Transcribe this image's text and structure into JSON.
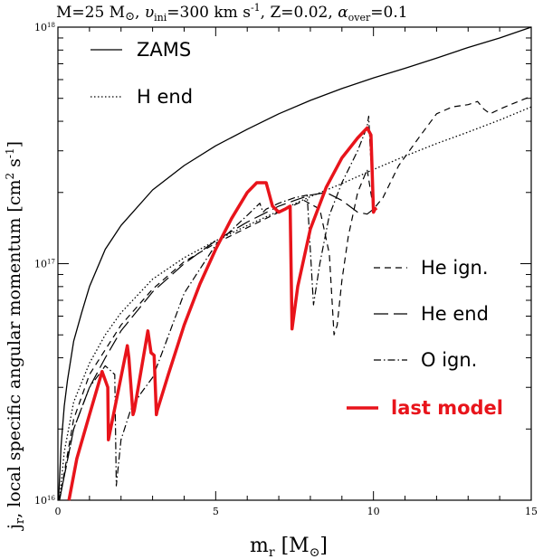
{
  "chart_data": {
    "type": "line",
    "title": "M=25 M⊙, υini=300 km s⁻¹, Z=0.02, αover=0.1",
    "title_parts": {
      "mass": "M=25 M",
      "sun": "⊙",
      "v": "υ",
      "v_sub": "ini",
      "v_val": "=300  km s",
      "v_exp": "-1",
      "z": ", Z=0.02, ",
      "alpha": "α",
      "alpha_sub": "over",
      "alpha_val": "=0.1"
    },
    "xlabel": "m",
    "xlabel_sub": "r",
    "xlabel_unit": "[M",
    "xlabel_unit_end": "]",
    "ylabel": "j",
    "ylabel_sub": "r",
    "ylabel_text": ", local specific angular momentum [cm",
    "ylabel_exp1": "2",
    "ylabel_mid": " s",
    "ylabel_exp2": "-1",
    "ylabel_end": "]",
    "xlim": [
      0,
      15
    ],
    "ylim": [
      1e+16,
      1e+18
    ],
    "yscale": "log",
    "x_ticks": [
      {
        "value": 0,
        "label": "0"
      },
      {
        "value": 5,
        "label": "5"
      },
      {
        "value": 10,
        "label": "10"
      },
      {
        "value": 15,
        "label": "15"
      }
    ],
    "y_ticks": [
      {
        "value": 1e+16,
        "label": "10",
        "exp": "16"
      },
      {
        "value": 1e+17,
        "label": "10",
        "exp": "17"
      },
      {
        "value": 1e+18,
        "label": "10",
        "exp": "18"
      }
    ],
    "legend": [
      {
        "name": "ZAMS",
        "style": "solid",
        "color": "#000000"
      },
      {
        "name": "H end",
        "style": "dotted",
        "color": "#000000"
      },
      {
        "name": "He ign.",
        "style": "dashed",
        "color": "#000000"
      },
      {
        "name": "He end",
        "style": "longdash",
        "color": "#000000"
      },
      {
        "name": "O ign.",
        "style": "dashdot",
        "color": "#000000"
      },
      {
        "name": "last model",
        "style": "thick-solid",
        "color": "#e8141b"
      }
    ],
    "series": [
      {
        "name": "ZAMS",
        "style": "solid",
        "x": [
          0.02,
          0.1,
          0.2,
          0.3,
          0.5,
          0.75,
          1.0,
          1.5,
          2.0,
          3.0,
          4.0,
          5.0,
          6.0,
          7.0,
          8.0,
          9.0,
          10.0,
          11.0,
          12.0,
          13.0,
          14.0,
          15.0
        ],
        "y": [
          1e+16,
          1.7e+16,
          2.5e+16,
          3.2e+16,
          4.7e+16,
          6.2e+16,
          8e+16,
          1.15e+17,
          1.45e+17,
          2.05e+17,
          2.6e+17,
          3.15e+17,
          3.7e+17,
          4.3e+17,
          4.9e+17,
          5.5e+17,
          6.1e+17,
          6.7e+17,
          7.4e+17,
          8.2e+17,
          9e+17,
          1e+18
        ]
      },
      {
        "name": "H end",
        "style": "dotted",
        "x": [
          0.05,
          0.2,
          0.5,
          1.0,
          1.5,
          2.0,
          3.0,
          4.0,
          5.0,
          6.0,
          7.0,
          8.0,
          9.0,
          10.0,
          11.0,
          12.0,
          13.0,
          14.0,
          15.0
        ],
        "y": [
          1e+16,
          1.6e+16,
          2.6e+16,
          3.8e+16,
          5e+16,
          6.2e+16,
          8.6e+16,
          1.06e+17,
          1.25e+17,
          1.45e+17,
          1.67e+17,
          1.92e+17,
          2.18e+17,
          2.5e+17,
          2.85e+17,
          3.22e+17,
          3.6e+17,
          4.05e+17,
          4.6e+17
        ]
      },
      {
        "name": "He ign.",
        "style": "dashed",
        "x": [
          0.05,
          0.5,
          1.0,
          2.0,
          3.0,
          4.0,
          5.0,
          6.0,
          7.0,
          7.8,
          8.3,
          8.6,
          8.75,
          8.85,
          9.0,
          9.2,
          9.5,
          9.8,
          10.0,
          10.3,
          10.8,
          11.5,
          12.0,
          12.5,
          13.0,
          13.3,
          13.5,
          13.7,
          14.0,
          14.5,
          15.0
        ],
        "y": [
          1e+16,
          2.2e+16,
          3.4e+16,
          5.5e+16,
          7.8e+16,
          1.02e+17,
          1.22e+17,
          1.42e+17,
          1.65e+17,
          1.85e+17,
          1.7e+17,
          1.1e+17,
          5e+16,
          5.5e+16,
          8.5e+16,
          1.3e+17,
          2e+17,
          2.5e+17,
          1.7e+17,
          1.9e+17,
          2.6e+17,
          3.5e+17,
          4.3e+17,
          4.6e+17,
          4.7e+17,
          4.85e+17,
          4.5e+17,
          4.3e+17,
          4.5e+17,
          4.8e+17,
          5.1e+17
        ]
      },
      {
        "name": "He end",
        "style": "longdash",
        "x": [
          0.05,
          0.5,
          1.0,
          1.5,
          2.0,
          3.0,
          4.0,
          5.0,
          6.0,
          7.0,
          7.5,
          8.0,
          8.5,
          9.0,
          9.5,
          9.8,
          10.0
        ],
        "y": [
          1e+16,
          2e+16,
          3e+16,
          4e+16,
          5.2e+16,
          7.6e+16,
          1e+17,
          1.25e+17,
          1.5e+17,
          1.75e+17,
          1.85e+17,
          1.95e+17,
          2e+17,
          1.85e+17,
          1.65e+17,
          1.62e+17,
          1.7e+17
        ]
      },
      {
        "name": "O ign.",
        "style": "dashdot",
        "x": [
          0.05,
          0.5,
          1.0,
          1.5,
          1.8,
          1.85,
          2.0,
          2.3,
          2.6,
          3.0,
          3.3,
          4.0,
          5.0,
          6.0,
          6.4,
          6.5,
          6.6,
          7.0,
          7.5,
          7.9,
          8.1,
          8.3,
          8.6,
          9.0,
          9.5,
          9.8,
          9.85,
          9.9,
          10.0
        ],
        "y": [
          1e+16,
          2e+16,
          3e+16,
          3.7e+16,
          3.4e+16,
          1.15e+16,
          1.8e+16,
          2.4e+16,
          2.8e+16,
          3.3e+16,
          4.2e+16,
          7.5e+16,
          1.2e+17,
          1.6e+17,
          1.8e+17,
          1.65e+17,
          1.7e+17,
          1.8e+17,
          1.9e+17,
          1.95e+17,
          6.7e+16,
          1e+17,
          1.6e+17,
          2.2e+17,
          3e+17,
          3.8e+17,
          4.2e+17,
          3e+17,
          1.8e+17
        ]
      },
      {
        "name": "last model",
        "style": "thick",
        "x": [
          0.35,
          0.6,
          1.0,
          1.4,
          1.58,
          1.6,
          2.2,
          2.25,
          2.38,
          2.42,
          2.85,
          2.95,
          3.05,
          3.12,
          3.15,
          3.5,
          4.0,
          4.5,
          5.0,
          5.5,
          6.0,
          6.3,
          6.6,
          6.8,
          7.0,
          7.2,
          7.36,
          7.42,
          7.6,
          8.0,
          8.5,
          9.0,
          9.5,
          9.8,
          9.92,
          10.0,
          10.05,
          10.1
        ],
        "y": [
          1e+16,
          1.5e+16,
          2.3e+16,
          3.5e+16,
          3e+16,
          1.8e+16,
          4.5e+16,
          4e+16,
          2.3e+16,
          2.4e+16,
          5.2e+16,
          4.2e+16,
          4.1e+16,
          2.3e+16,
          2.4e+16,
          3.4e+16,
          5.5e+16,
          8.2e+16,
          1.15e+17,
          1.55e+17,
          2e+17,
          2.2e+17,
          2.2e+17,
          1.75e+17,
          1.65e+17,
          1.7e+17,
          1.75e+17,
          5.3e+16,
          8e+16,
          1.4e+17,
          2.1e+17,
          2.8e+17,
          3.4e+17,
          3.75e+17,
          3.5e+17,
          1.65e+17,
          1.7e+17,
          1.72e+17
        ]
      }
    ],
    "colors": {
      "last_model": "#e8141b",
      "axes": "#000000"
    }
  }
}
